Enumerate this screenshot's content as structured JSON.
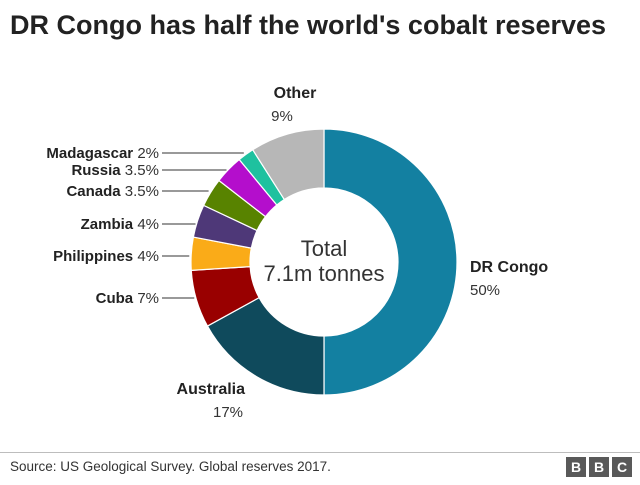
{
  "title": "DR Congo has half the world's cobalt reserves",
  "source": "Source: US Geological Survey. Global reserves 2017.",
  "logo": [
    "B",
    "B",
    "C"
  ],
  "chart_data": {
    "type": "pie",
    "style": "donut",
    "center_label": [
      "Total",
      "7.1m tonnes"
    ],
    "slices": [
      {
        "label": "DR Congo",
        "display": "50%",
        "value": 50,
        "color": "#1380A1"
      },
      {
        "label": "Australia",
        "display": "17%",
        "value": 17,
        "color": "#0F4A5C"
      },
      {
        "label": "Cuba",
        "display": "7%",
        "value": 7,
        "color": "#990000"
      },
      {
        "label": "Philippines",
        "display": "4%",
        "value": 4,
        "color": "#FAAB18"
      },
      {
        "label": "Zambia",
        "display": "4%",
        "value": 4,
        "color": "#4E3878"
      },
      {
        "label": "Canada",
        "display": "3.5%",
        "value": 3.5,
        "color": "#588300"
      },
      {
        "label": "Russia",
        "display": "3.5%",
        "value": 3.5,
        "color": "#B40ECC"
      },
      {
        "label": "Madagascar",
        "display": "2%",
        "value": 2,
        "color": "#1FC19F"
      },
      {
        "label": "Other",
        "display": "9%",
        "value": 9,
        "color": "#B7B7B7"
      }
    ]
  }
}
